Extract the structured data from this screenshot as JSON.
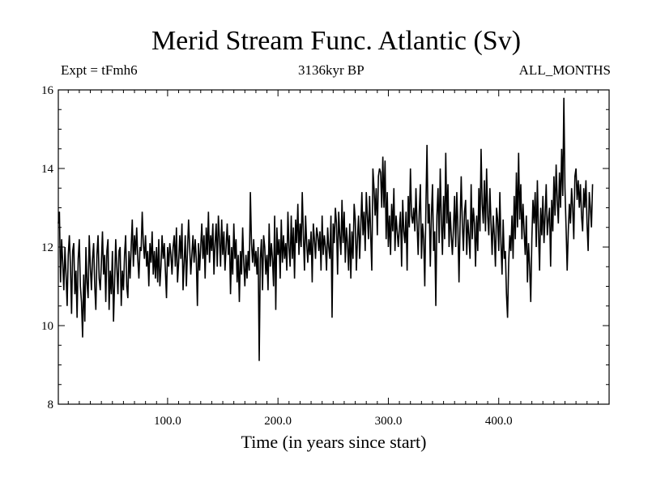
{
  "chart_data": {
    "type": "line",
    "title": "Merid Stream Func. Atlantic (Sv)",
    "subtitle_left": "Expt = tFmh6",
    "subtitle_center": "3136kyr BP",
    "subtitle_right": "ALL_MONTHS",
    "xlabel": "Time (in years since start)",
    "ylabel": "",
    "xlim": [
      1,
      500
    ],
    "ylim": [
      8,
      16
    ],
    "x_ticks_major": [
      100,
      200,
      300,
      400
    ],
    "x_ticks_major_labels": [
      "100.0",
      "200.0",
      "300.0",
      "400.0"
    ],
    "x_ticks_minor_step": 10,
    "y_ticks_major": [
      8,
      10,
      12,
      14,
      16
    ],
    "y_ticks_major_labels": [
      "8",
      "10",
      "12",
      "14",
      "16"
    ],
    "y_ticks_minor_step": 0.5,
    "grid": false,
    "series": [
      {
        "name": "Merid Stream Func. Atlantic",
        "x_start": 1,
        "x_step": 1,
        "values": [
          12.6,
          12.9,
          11.1,
          12.2,
          11.6,
          10.9,
          12.0,
          11.3,
          10.5,
          11.8,
          12.3,
          11.5,
          10.3,
          11.9,
          12.1,
          10.8,
          11.4,
          10.2,
          11.7,
          12.2,
          11.0,
          10.6,
          9.7,
          11.3,
          10.1,
          12.0,
          11.1,
          10.7,
          12.3,
          11.5,
          10.9,
          11.7,
          12.1,
          11.0,
          10.4,
          11.8,
          12.3,
          11.2,
          10.9,
          11.6,
          12.4,
          11.3,
          11.8,
          10.6,
          11.9,
          12.2,
          10.4,
          11.4,
          10.8,
          11.9,
          10.1,
          11.1,
          12.2,
          11.5,
          10.8,
          11.9,
          12.0,
          10.5,
          11.4,
          10.9,
          11.8,
          12.3,
          11.0,
          10.7,
          11.9,
          11.2,
          12.0,
          12.7,
          11.5,
          12.3,
          11.8,
          12.5,
          11.7,
          11.2,
          12.0,
          11.9,
          12.9,
          12.1,
          11.7,
          12.3,
          11.5,
          11.9,
          11.0,
          12.1,
          11.6,
          12.4,
          11.3,
          11.9,
          11.2,
          12.0,
          11.1,
          12.2,
          11.0,
          11.5,
          12.3,
          11.7,
          12.1,
          11.4,
          10.7,
          12.0,
          11.5,
          12.1,
          11.8,
          11.3,
          12.0,
          12.3,
          11.5,
          12.5,
          11.1,
          11.6,
          12.3,
          11.7,
          12.6,
          10.9,
          11.6,
          12.3,
          11.0,
          11.9,
          12.7,
          12.0,
          11.3,
          11.8,
          12.3,
          11.6,
          12.2,
          11.7,
          10.5,
          12.1,
          11.4,
          12.0,
          12.6,
          11.7,
          12.3,
          11.2,
          12.5,
          11.8,
          12.9,
          11.6,
          12.3,
          11.9,
          12.6,
          11.3,
          12.1,
          12.6,
          11.5,
          12.8,
          12.2,
          11.5,
          12.7,
          11.8,
          12.4,
          11.4,
          12.0,
          12.6,
          11.8,
          12.3,
          10.8,
          12.0,
          11.3,
          12.6,
          11.7,
          12.2,
          11.1,
          11.8,
          10.6,
          11.9,
          11.3,
          12.5,
          11.6,
          11.0,
          11.8,
          11.2,
          11.9,
          11.4,
          13.4,
          12.1,
          11.6,
          12.2,
          11.5,
          11.9,
          11.3,
          12.0,
          9.1,
          11.7,
          12.2,
          10.9,
          12.3,
          12.0,
          11.3,
          11.8,
          10.9,
          12.6,
          11.5,
          12.1,
          11.7,
          11.0,
          12.8,
          10.4,
          12.5,
          11.8,
          12.2,
          11.2,
          12.7,
          11.6,
          12.3,
          11.7,
          12.1,
          11.4,
          12.9,
          12.0,
          11.5,
          12.8,
          11.7,
          12.5,
          11.2,
          12.7,
          12.1,
          13.1,
          11.8,
          12.6,
          12.0,
          13.4,
          12.3,
          11.4,
          12.8,
          12.1,
          11.6,
          12.2,
          11.8,
          12.4,
          11.1,
          12.6,
          12.2,
          11.7,
          12.5,
          12.3,
          11.9,
          12.4,
          11.4,
          12.8,
          11.8,
          12.3,
          12.0,
          11.4,
          12.5,
          12.0,
          11.7,
          12.8,
          10.2,
          12.6,
          12.1,
          13.0,
          12.6,
          11.3,
          12.9,
          12.3,
          11.8,
          13.2,
          12.1,
          12.9,
          11.6,
          12.5,
          12.1,
          11.4,
          12.6,
          11.2,
          12.4,
          11.7,
          13.1,
          12.7,
          11.4,
          12.2,
          12.8,
          11.7,
          12.5,
          13.4,
          12.3,
          12.9,
          11.9,
          13.4,
          12.8,
          12.2,
          13.3,
          12.3,
          11.4,
          14.0,
          13.5,
          12.8,
          13.5,
          12.3,
          13.8,
          14.0,
          13.9,
          13.0,
          14.3,
          13.0,
          14.2,
          12.2,
          13.4,
          12.0,
          12.8,
          11.8,
          13.1,
          12.4,
          13.5,
          11.9,
          12.8,
          12.4,
          12.0,
          12.5,
          12.9,
          11.5,
          13.2,
          12.4,
          12.1,
          12.9,
          11.4,
          13.3,
          12.5,
          14.0,
          12.8,
          12.6,
          13.0,
          12.4,
          13.5,
          12.6,
          11.8,
          12.9,
          13.6,
          11.7,
          12.6,
          12.2,
          11.0,
          13.0,
          14.6,
          12.6,
          13.1,
          11.5,
          12.8,
          13.6,
          11.9,
          12.4,
          10.5,
          12.8,
          13.5,
          12.1,
          14.0,
          12.7,
          11.8,
          13.3,
          12.2,
          14.4,
          12.6,
          13.6,
          12.0,
          12.9,
          12.3,
          11.8,
          12.5,
          13.3,
          12.0,
          13.4,
          12.5,
          11.1,
          12.6,
          13.8,
          12.6,
          11.9,
          12.9,
          13.2,
          11.8,
          12.7,
          12.3,
          11.7,
          13.6,
          12.2,
          13.0,
          12.6,
          11.5,
          12.8,
          11.9,
          13.5,
          12.4,
          14.5,
          13.1,
          12.6,
          13.7,
          12.4,
          14.0,
          12.8,
          12.3,
          13.5,
          12.6,
          11.8,
          12.8,
          12.3,
          11.5,
          13.0,
          12.7,
          11.9,
          13.4,
          12.1,
          11.3,
          12.7,
          11.7,
          11.9,
          10.8,
          10.2,
          11.6,
          12.3,
          11.9,
          12.8,
          11.7,
          13.3,
          12.2,
          13.9,
          12.5,
          14.4,
          12.7,
          13.6,
          12.2,
          13.1,
          12.4,
          11.8,
          12.8,
          11.1,
          12.1,
          11.5,
          10.6,
          12.2,
          13.2,
          12.6,
          13.4,
          12.0,
          13.7,
          12.4,
          11.4,
          13.0,
          12.3,
          13.3,
          12.1,
          12.8,
          13.6,
          12.3,
          12.7,
          13.0,
          11.5,
          13.2,
          12.4,
          13.8,
          12.8,
          14.1,
          13.2,
          12.6,
          13.9,
          13.0,
          14.5,
          13.3,
          15.8,
          13.5,
          12.5,
          11.4,
          12.4,
          13.1,
          12.6,
          13.5,
          13.0,
          12.2,
          13.8,
          14.0,
          13.2,
          13.7,
          13.0,
          13.6,
          12.8,
          12.4,
          13.5,
          13.0,
          13.7,
          12.6,
          11.9,
          13.4,
          13.0,
          12.5,
          13.6
        ]
      }
    ]
  }
}
